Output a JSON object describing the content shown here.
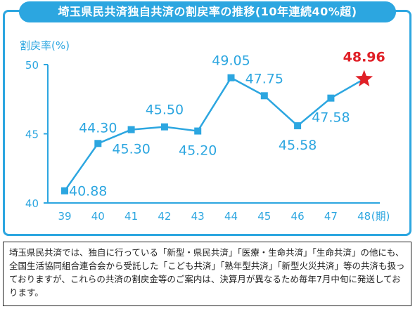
{
  "title": "埼玉県民共済独自共済の割戻率の推移(10年連続40%超)",
  "note": "埼玉県民共済では、独自に行っている「新型・県民共済」「医療・生命共済」「生命共済」の他にも、全国生活協同組合連合会から受託した「こども共済」「熟年型共済」「新型火災共済」等の共済も扱っておりますが、これらの共済の割戻金等のご案内は、決算月が異なるため毎年7月中旬に発送しております。",
  "chart_data": {
    "type": "line",
    "ylabel": "割戻率(%)",
    "xlabel": "(期)",
    "ylim": [
      40,
      50
    ],
    "yticks": [
      "40",
      "45",
      "50"
    ],
    "categories": [
      "39",
      "40",
      "41",
      "42",
      "43",
      "44",
      "45",
      "46",
      "47",
      "48"
    ],
    "values": [
      40.88,
      44.3,
      45.3,
      45.5,
      45.2,
      49.05,
      47.75,
      45.58,
      47.58,
      48.96
    ],
    "data_labels": [
      "40.88",
      "44.30",
      "45.30",
      "45.50",
      "45.20",
      "49.05",
      "47.75",
      "45.58",
      "47.58",
      "48.96"
    ],
    "highlight_index": 9,
    "colors": {
      "line": "#2ca6e0",
      "highlight": "#e02027"
    }
  }
}
